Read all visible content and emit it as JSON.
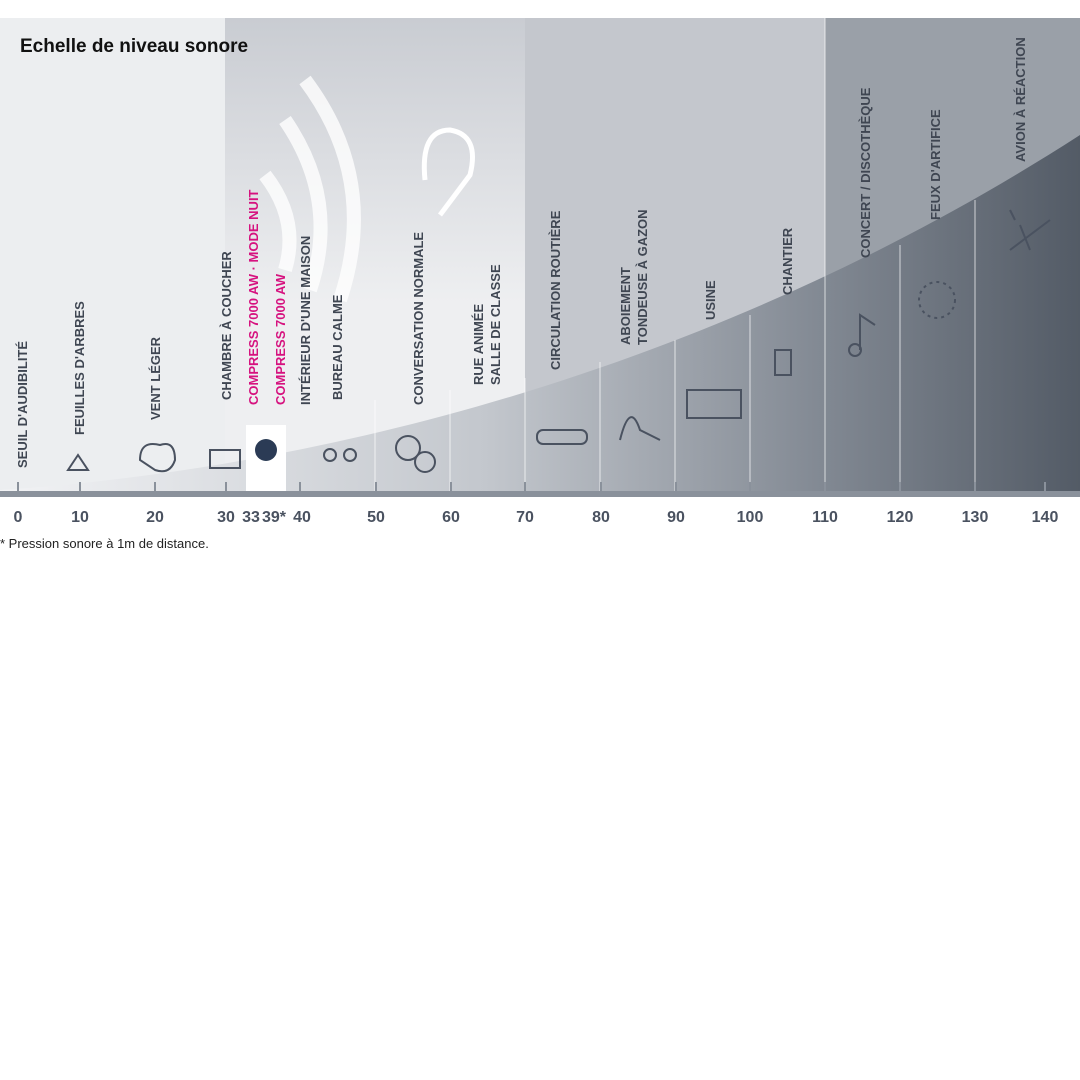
{
  "header": {
    "title": "Echelle de niveau sonore"
  },
  "items": [
    {
      "lines": [
        "SEUIL D'AUDIBILITÉ"
      ]
    },
    {
      "lines": [
        "FEUILLES D'ARBRES"
      ]
    },
    {
      "lines": [
        "VENT LÉGER"
      ]
    },
    {
      "lines": [
        "CHAMBRE À COUCHER"
      ]
    },
    {
      "lines": [
        "COMPRESS 7000 AW · MODE NUIT"
      ],
      "highlight": true
    },
    {
      "lines": [
        "COMPRESS 7000 AW"
      ],
      "highlight": true
    },
    {
      "lines": [
        "INTÉRIEUR D'UNE MAISON"
      ]
    },
    {
      "lines": [
        "BUREAU CALME"
      ]
    },
    {
      "lines": [
        "CONVERSATION NORMALE"
      ]
    },
    {
      "lines": [
        "RUE ANIMÉE",
        "SALLE DE CLASSE"
      ]
    },
    {
      "lines": [
        "CIRCULATION  ROUTIÈRE"
      ]
    },
    {
      "lines": [
        "ABOIEMENT",
        "TONDEUSE À GAZON"
      ]
    },
    {
      "lines": [
        "USINE"
      ]
    },
    {
      "lines": [
        "CHANTIER"
      ]
    },
    {
      "lines": [
        "CONCERT / DISCOTHÈQUE"
      ]
    },
    {
      "lines": [
        "FEUX D'ARTIFICE"
      ]
    },
    {
      "lines": [
        "AVION À RÉACTION"
      ]
    }
  ],
  "axis": {
    "ticks": [
      0,
      10,
      20,
      30,
      40,
      50,
      60,
      70,
      80,
      90,
      100,
      110,
      120,
      130,
      140
    ],
    "highlights": [
      "33",
      "39*"
    ]
  },
  "footnote": "* Pression sonore à 1m de distance."
}
